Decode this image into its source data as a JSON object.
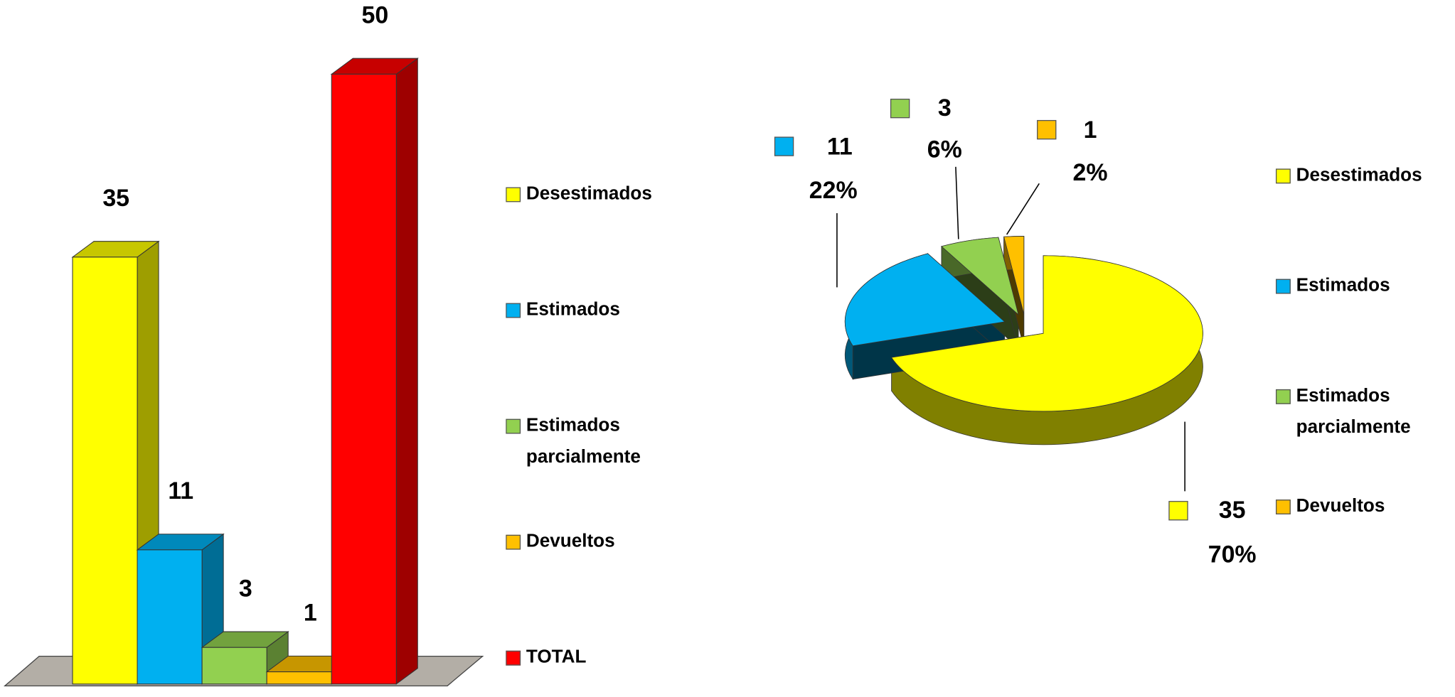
{
  "chart_data": [
    {
      "type": "bar",
      "categories": [
        "Desestimados",
        "Estimados",
        "Estimados parcialmente",
        "Devueltos",
        "TOTAL"
      ],
      "values": [
        35,
        11,
        3,
        1,
        50
      ],
      "colors": [
        "#ffff00",
        "#00b0f0",
        "#92d050",
        "#ffc000",
        "#ff0000"
      ]
    },
    {
      "type": "pie",
      "categories": [
        "Desestimados",
        "Estimados",
        "Estimados parcialmente",
        "Devueltos"
      ],
      "values": [
        35,
        11,
        3,
        1
      ],
      "percent_labels": [
        "70%",
        "22%",
        "6%",
        "2%"
      ],
      "colors": [
        "#ffff00",
        "#00b0f0",
        "#92d050",
        "#ffc000"
      ]
    }
  ]
}
